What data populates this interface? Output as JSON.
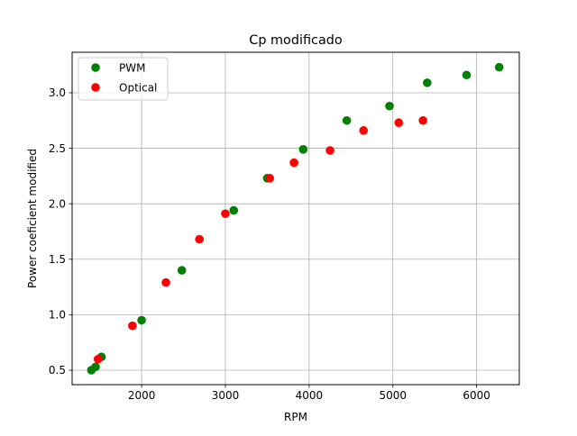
{
  "chart_data": {
    "type": "scatter",
    "title": "Cp modificado",
    "xlabel": "RPM",
    "ylabel": "Power coeficient modified",
    "xlim": [
      1170,
      6510
    ],
    "ylim": [
      0.37,
      3.365
    ],
    "xticks": [
      2000,
      3000,
      4000,
      5000,
      6000
    ],
    "xtick_labels": [
      "2000",
      "3000",
      "4000",
      "5000",
      "6000"
    ],
    "yticks": [
      0.5,
      1.0,
      1.5,
      2.0,
      2.5,
      3.0
    ],
    "ytick_labels": [
      "0.5",
      "1.0",
      "1.5",
      "2.0",
      "2.5",
      "3.0"
    ],
    "grid": true,
    "legend_position": "upper-left",
    "series": [
      {
        "name": "PWM",
        "color": "#008000",
        "x": [
          1400,
          1450,
          1520,
          2000,
          2480,
          3100,
          3500,
          3930,
          4450,
          4960,
          5410,
          5880,
          6270
        ],
        "y": [
          0.5,
          0.53,
          0.62,
          0.95,
          1.4,
          1.94,
          2.23,
          2.49,
          2.75,
          2.88,
          3.09,
          3.16,
          3.23
        ]
      },
      {
        "name": "Optical",
        "color": "#ff0000",
        "x": [
          1480,
          1890,
          2290,
          2690,
          3000,
          3530,
          3820,
          4250,
          4650,
          5070,
          5360
        ],
        "y": [
          0.6,
          0.9,
          1.29,
          1.68,
          1.91,
          2.23,
          2.37,
          2.48,
          2.66,
          2.73,
          2.75
        ]
      }
    ]
  }
}
